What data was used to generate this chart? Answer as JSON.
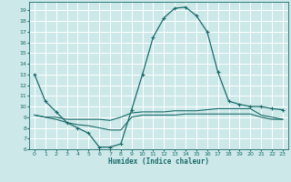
{
  "xlabel": "Humidex (Indice chaleur)",
  "bg_color": "#cce8e8",
  "line_color": "#1a6b6b",
  "grid_color": "#ffffff",
  "ylim": [
    6,
    19.8
  ],
  "xlim": [
    -0.5,
    23.5
  ],
  "yticks": [
    6,
    7,
    8,
    9,
    10,
    11,
    12,
    13,
    14,
    15,
    16,
    17,
    18,
    19
  ],
  "xticks": [
    0,
    1,
    2,
    3,
    4,
    5,
    6,
    7,
    8,
    9,
    10,
    11,
    12,
    13,
    14,
    15,
    16,
    17,
    18,
    19,
    20,
    21,
    22,
    23
  ],
  "line1_x": [
    0,
    1,
    2,
    3,
    4,
    5,
    6,
    7,
    8,
    9,
    10,
    11,
    12,
    13,
    14,
    15,
    16,
    17,
    18,
    19,
    20,
    21,
    22,
    23
  ],
  "line1_y": [
    13,
    10.5,
    9.5,
    8.5,
    8.0,
    7.5,
    6.2,
    6.2,
    6.5,
    9.7,
    13.0,
    16.5,
    18.3,
    19.2,
    19.3,
    18.5,
    17.0,
    13.2,
    10.5,
    10.2,
    10.0,
    10.0,
    9.8,
    9.7
  ],
  "line2_x": [
    0,
    1,
    2,
    3,
    4,
    5,
    6,
    7,
    8,
    9,
    10,
    11,
    12,
    13,
    14,
    15,
    16,
    17,
    18,
    19,
    20,
    21,
    22,
    23
  ],
  "line2_y": [
    9.2,
    9.0,
    9.0,
    8.8,
    8.8,
    8.8,
    8.8,
    8.7,
    9.0,
    9.4,
    9.5,
    9.5,
    9.5,
    9.6,
    9.6,
    9.6,
    9.7,
    9.8,
    9.8,
    9.8,
    9.8,
    9.2,
    9.0,
    8.8
  ],
  "line3_x": [
    0,
    1,
    2,
    3,
    4,
    5,
    6,
    7,
    8,
    9,
    10,
    11,
    12,
    13,
    14,
    15,
    16,
    17,
    18,
    19,
    20,
    21,
    22,
    23
  ],
  "line3_y": [
    9.2,
    9.0,
    8.8,
    8.5,
    8.3,
    8.2,
    8.0,
    7.8,
    7.8,
    9.0,
    9.2,
    9.2,
    9.2,
    9.2,
    9.3,
    9.3,
    9.3,
    9.3,
    9.3,
    9.3,
    9.3,
    9.0,
    8.8,
    8.8
  ]
}
